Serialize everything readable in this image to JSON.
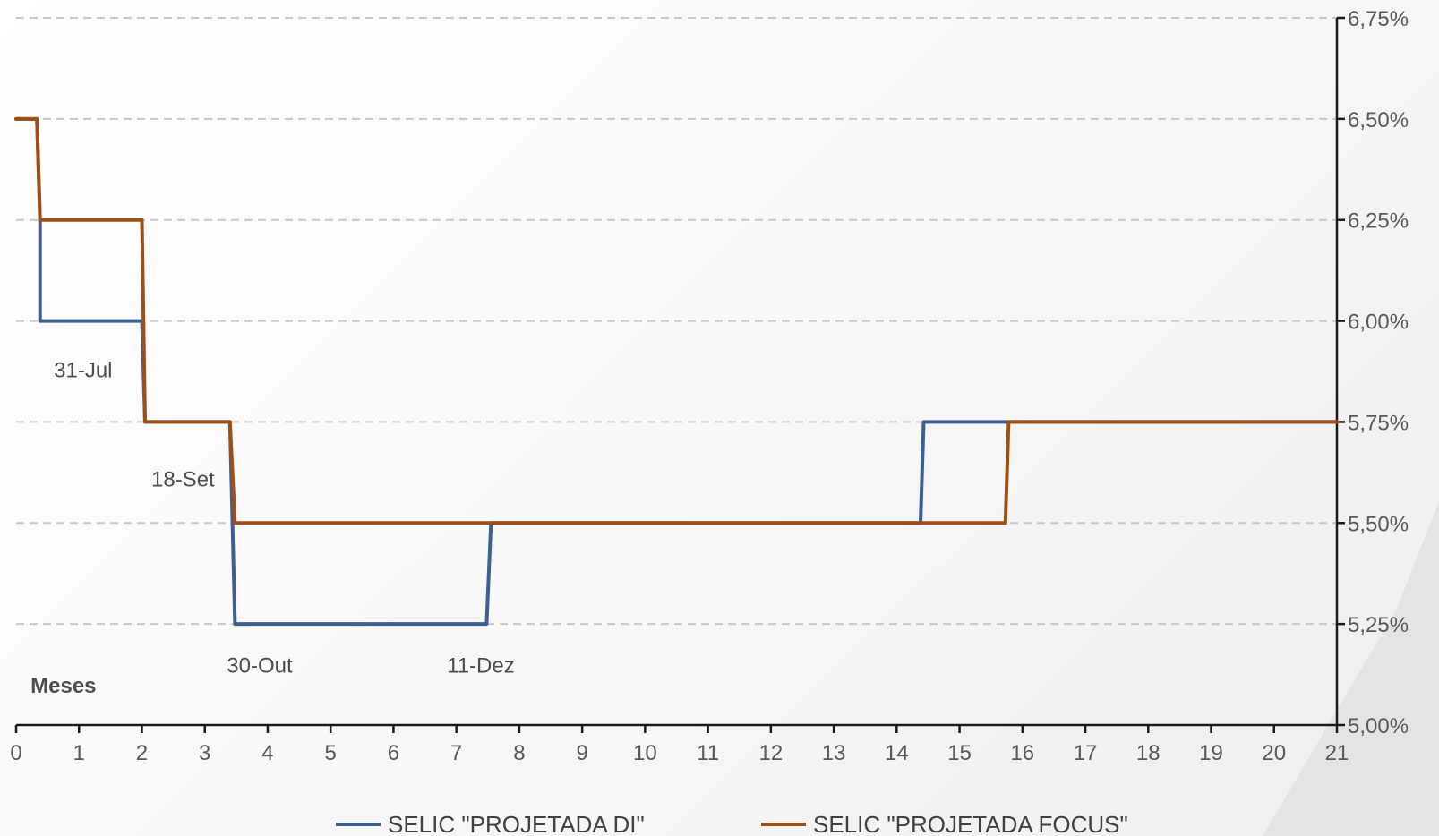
{
  "chart_data": {
    "type": "line",
    "step": true,
    "title": "",
    "xlabel": "Meses",
    "ylabel": "",
    "xlim": [
      0,
      21
    ],
    "ylim": [
      5.0,
      6.75
    ],
    "x_ticks": [
      "0",
      "1",
      "2",
      "3",
      "4",
      "5",
      "6",
      "7",
      "8",
      "9",
      "10",
      "11",
      "12",
      "13",
      "14",
      "15",
      "16",
      "17",
      "18",
      "19",
      "20",
      "21"
    ],
    "y_ticks": [
      "5,00%",
      "5,25%",
      "5,50%",
      "5,75%",
      "6,00%",
      "6,25%",
      "6,50%",
      "6,75%"
    ],
    "y_axis_position": "right",
    "grid": true,
    "legend_position": "bottom",
    "series": [
      {
        "name": "SELIC \"PROJETADA DI\"",
        "color": "#3d5f91",
        "x": [
          0.0,
          0.33,
          0.38,
          0.38,
          2.0,
          2.05,
          3.4,
          3.48,
          7.48,
          7.55,
          14.38,
          14.43,
          15.73,
          15.78,
          21.0
        ],
        "y": [
          6.5,
          6.5,
          6.25,
          6.0,
          6.0,
          5.75,
          5.75,
          5.25,
          5.25,
          5.5,
          5.5,
          5.75,
          5.75,
          5.75,
          5.75
        ]
      },
      {
        "name": "SELIC \"PROJETADA FOCUS\"",
        "color": "#9e4f18",
        "x": [
          0.0,
          0.33,
          0.38,
          2.0,
          2.05,
          3.4,
          3.48,
          15.73,
          15.78,
          21.0
        ],
        "y": [
          6.5,
          6.5,
          6.25,
          6.25,
          5.75,
          5.75,
          5.5,
          5.5,
          5.75,
          5.75
        ]
      }
    ],
    "annotations": [
      {
        "text": "31-Jul",
        "x": 0.6,
        "y": 5.88
      },
      {
        "text": "18-Set",
        "x": 2.15,
        "y": 5.61
      },
      {
        "text": "30-Out",
        "x": 3.35,
        "y": 5.15
      },
      {
        "text": "11-Dez",
        "x": 6.85,
        "y": 5.15
      }
    ]
  }
}
